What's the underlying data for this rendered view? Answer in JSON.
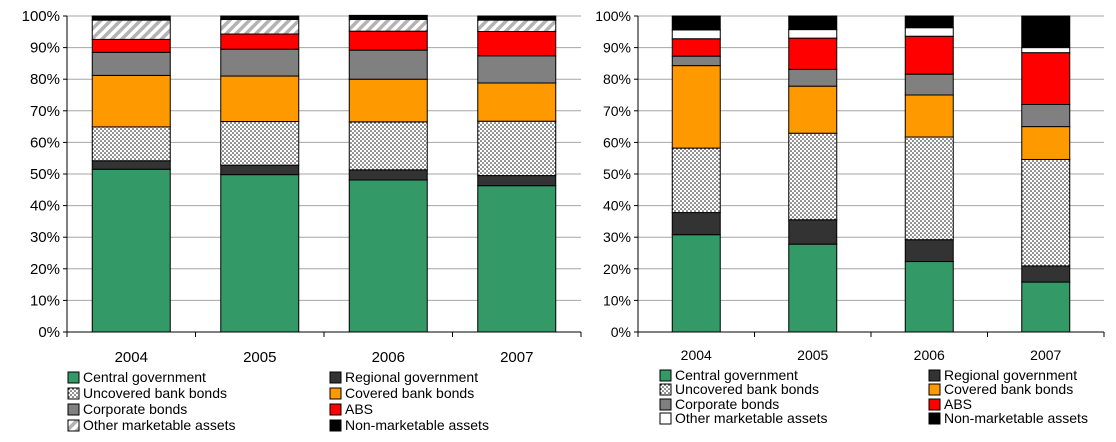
{
  "chart_data": [
    {
      "type": "bar",
      "stacked": true,
      "categories": [
        "2004",
        "2005",
        "2006",
        "2007"
      ],
      "ylim": [
        0,
        100
      ],
      "yticks": [
        "0%",
        "10%",
        "20%",
        "30%",
        "40%",
        "50%",
        "60%",
        "70%",
        "80%",
        "90%",
        "100%"
      ],
      "grid": "horizontal",
      "legend_position": "bottom",
      "series": [
        {
          "name": "Central government",
          "color": "#339966",
          "pattern": "solid",
          "values": [
            51.5,
            49.8,
            48.1,
            46.3
          ]
        },
        {
          "name": "Regional government",
          "color": "#333333",
          "pattern": "solid",
          "values": [
            2.7,
            3.0,
            3.2,
            3.2
          ]
        },
        {
          "name": "Uncovered bank bonds",
          "color": "#ffffff",
          "pattern": "dots",
          "values": [
            10.7,
            13.8,
            15.2,
            17.2
          ]
        },
        {
          "name": "Covered bank bonds",
          "color": "#ff9900",
          "pattern": "solid",
          "values": [
            16.3,
            14.4,
            13.5,
            12.1
          ]
        },
        {
          "name": "Corporate bonds",
          "color": "#808080",
          "pattern": "solid",
          "values": [
            7.3,
            8.5,
            9.2,
            8.6
          ]
        },
        {
          "name": "ABS",
          "color": "#ff0000",
          "pattern": "solid",
          "values": [
            4.1,
            4.8,
            6.0,
            7.7
          ]
        },
        {
          "name": "Other marketable assets",
          "color": "#cccccc",
          "pattern": "diagonal",
          "values": [
            6.1,
            4.6,
            3.7,
            3.6
          ]
        },
        {
          "name": "Non-marketable assets",
          "color": "#000000",
          "pattern": "solid",
          "values": [
            1.3,
            1.1,
            1.3,
            1.3
          ]
        }
      ]
    },
    {
      "type": "bar",
      "stacked": true,
      "categories": [
        "2004",
        "2005",
        "2006",
        "2007"
      ],
      "ylim": [
        0,
        100
      ],
      "yticks": [
        "0%",
        "10%",
        "20%",
        "30%",
        "40%",
        "50%",
        "60%",
        "70%",
        "80%",
        "90%",
        "100%"
      ],
      "grid": "horizontal",
      "legend_position": "bottom",
      "series": [
        {
          "name": "Central government",
          "color": "#339966",
          "pattern": "solid",
          "values": [
            30.8,
            27.8,
            22.3,
            15.8
          ]
        },
        {
          "name": "Regional government",
          "color": "#333333",
          "pattern": "solid",
          "values": [
            7.0,
            7.7,
            6.9,
            5.1
          ]
        },
        {
          "name": "Uncovered bank bonds",
          "color": "#ffffff",
          "pattern": "dots",
          "values": [
            20.4,
            27.4,
            32.5,
            33.7
          ]
        },
        {
          "name": "Covered bank bonds",
          "color": "#ff9900",
          "pattern": "solid",
          "values": [
            26.1,
            14.9,
            13.3,
            10.4
          ]
        },
        {
          "name": "Corporate bonds",
          "color": "#808080",
          "pattern": "solid",
          "values": [
            3.0,
            5.3,
            6.6,
            7.0
          ]
        },
        {
          "name": "ABS",
          "color": "#ff0000",
          "pattern": "solid",
          "values": [
            5.5,
            9.9,
            12.0,
            16.4
          ]
        },
        {
          "name": "Other marketable assets",
          "color": "#ffffff",
          "pattern": "solid",
          "values": [
            2.8,
            2.7,
            2.7,
            1.6
          ]
        },
        {
          "name": "Non-marketable assets",
          "color": "#000000",
          "pattern": "solid",
          "values": [
            4.4,
            4.3,
            3.7,
            10.0
          ]
        }
      ]
    }
  ]
}
